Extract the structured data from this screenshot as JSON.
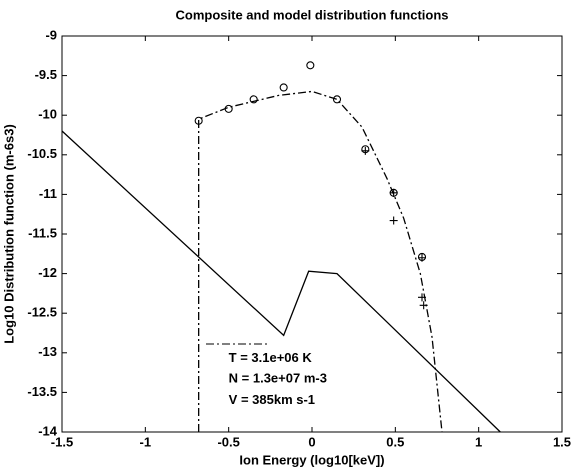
{
  "chart_data": {
    "type": "line",
    "title": "Composite and model distribution functions",
    "xlabel": "Ion Energy (log10[keV])",
    "ylabel": "Log10 Distribution function (m-6s3)",
    "xlim": [
      -1.5,
      1.5
    ],
    "ylim": [
      -14,
      -9
    ],
    "xticks": [
      -1.5,
      -1,
      -0.5,
      0,
      0.5,
      1,
      1.5
    ],
    "yticks": [
      -9,
      -9.5,
      -10,
      -10.5,
      -11,
      -11.5,
      -12,
      -12.5,
      -13,
      -13.5,
      -14
    ],
    "grid": false,
    "series": [
      {
        "color": "#000000",
        "style": "solid",
        "marker": "none",
        "x": [
          -1.5,
          -0.17,
          -0.02,
          0.15,
          1.13
        ],
        "values": [
          -10.2,
          -12.78,
          -11.97,
          -12.0,
          -14
        ]
      },
      {
        "color": "#000000",
        "style": "dashdot",
        "marker": "none",
        "x": [
          -0.68,
          -0.68,
          -0.5,
          -0.2,
          0,
          0.15,
          0.3,
          0.45,
          0.55,
          0.65,
          0.72,
          0.78
        ],
        "values": [
          -14,
          -10.05,
          -9.9,
          -9.75,
          -9.7,
          -9.8,
          -10.15,
          -10.8,
          -11.3,
          -12.0,
          -12.8,
          -14
        ]
      },
      {
        "color": "#000000",
        "style": "none",
        "marker": "circle",
        "x": [
          -0.68,
          -0.5,
          -0.35,
          -0.17,
          -0.01,
          0.15,
          0.32,
          0.49,
          0.66
        ],
        "values": [
          -10.07,
          -9.92,
          -9.8,
          -9.65,
          -9.37,
          -9.8,
          -10.43,
          -10.98,
          -11.79
        ]
      },
      {
        "color": "#000000",
        "style": "none",
        "marker": "plus",
        "x": [
          0.32,
          0.49,
          0.49,
          0.66,
          0.66,
          0.67
        ],
        "values": [
          -10.45,
          -10.98,
          -11.33,
          -11.8,
          -12.3,
          -12.4
        ]
      }
    ],
    "annotations": [
      "T = 3.1e+06 K",
      "N = 1.3e+07 m-3",
      "V = 385km s-1"
    ]
  }
}
